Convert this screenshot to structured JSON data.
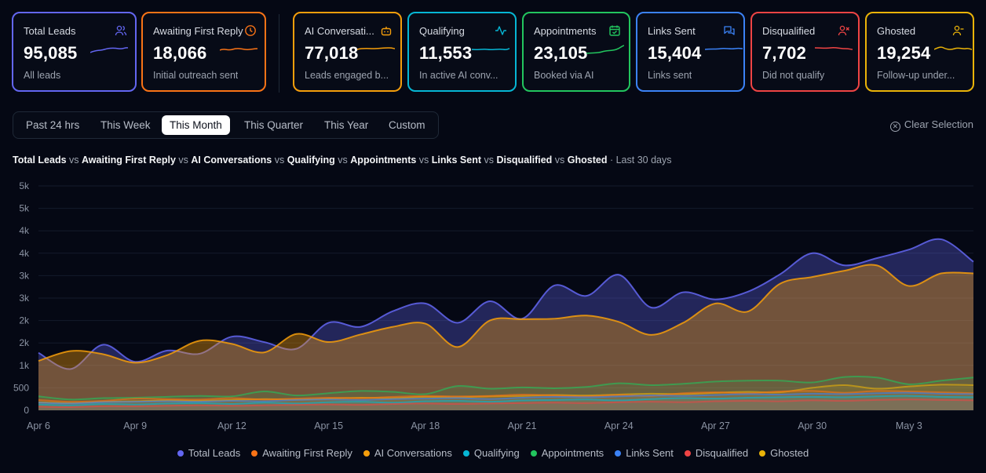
{
  "cards": [
    {
      "title": "Total Leads",
      "value": "95,085",
      "sub": "All leads",
      "color": "#6366f1",
      "icon": "users-icon"
    },
    {
      "title": "Awaiting First Reply",
      "value": "18,066",
      "sub": "Initial outreach sent",
      "color": "#f97316",
      "icon": "clock-icon"
    },
    {
      "title": "AI Conversati...",
      "value": "77,018",
      "sub": "Leads engaged b...",
      "color": "#f59e0b",
      "icon": "bot-icon"
    },
    {
      "title": "Qualifying",
      "value": "11,553",
      "sub": "In active AI conv...",
      "color": "#06b6d4",
      "icon": "activity-icon"
    },
    {
      "title": "Appointments",
      "value": "23,105",
      "sub": "Booked via AI",
      "color": "#22c55e",
      "icon": "calendar-check-icon"
    },
    {
      "title": "Links Sent",
      "value": "15,404",
      "sub": "Links sent",
      "color": "#3b82f6",
      "icon": "message-square-icon"
    },
    {
      "title": "Disqualified",
      "value": "7,702",
      "sub": "Did not qualify",
      "color": "#ef4444",
      "icon": "user-x-icon"
    },
    {
      "title": "Ghosted",
      "value": "19,254",
      "sub": "Follow-up under...",
      "color": "#eab308",
      "icon": "user-minus-icon"
    }
  ],
  "time_ranges": [
    {
      "label": "Past 24 hrs",
      "active": false
    },
    {
      "label": "This Week",
      "active": false
    },
    {
      "label": "This Month",
      "active": true
    },
    {
      "label": "This Quarter",
      "active": false
    },
    {
      "label": "This Year",
      "active": false
    },
    {
      "label": "Custom",
      "active": false
    }
  ],
  "clear_selection": "Clear Selection",
  "chart_heading": {
    "series_names": [
      "Total Leads",
      "Awaiting First Reply",
      "AI Conversations",
      "Qualifying",
      "Appointments",
      "Links Sent",
      "Disqualified",
      "Ghosted"
    ],
    "separator": "vs",
    "period": "· Last 30 days"
  },
  "chart_data": {
    "type": "area",
    "x": [
      "Apr 6",
      "Apr 7",
      "Apr 8",
      "Apr 9",
      "Apr 10",
      "Apr 11",
      "Apr 12",
      "Apr 13",
      "Apr 14",
      "Apr 15",
      "Apr 16",
      "Apr 17",
      "Apr 18",
      "Apr 19",
      "Apr 20",
      "Apr 21",
      "Apr 22",
      "Apr 23",
      "Apr 24",
      "Apr 25",
      "Apr 26",
      "Apr 27",
      "Apr 28",
      "Apr 29",
      "Apr 30",
      "May 1",
      "May 2",
      "May 3",
      "May 4",
      "May 5"
    ],
    "x_ticks": [
      "Apr 6",
      "Apr 9",
      "Apr 12",
      "Apr 15",
      "Apr 18",
      "Apr 21",
      "Apr 24",
      "Apr 27",
      "Apr 30",
      "May 3"
    ],
    "y_ticks": [
      "0",
      "500",
      "1k",
      "2k",
      "2k",
      "3k",
      "3k",
      "4k",
      "4k",
      "5k",
      "5k"
    ],
    "ylim": [
      0,
      5000
    ],
    "grid": true,
    "legend_position": "bottom",
    "series": [
      {
        "name": "Total Leads",
        "color": "#6366f1",
        "values": [
          1280,
          920,
          1460,
          1080,
          1330,
          1260,
          1640,
          1520,
          1370,
          1950,
          1860,
          2210,
          2380,
          1950,
          2430,
          2040,
          2780,
          2550,
          3020,
          2290,
          2630,
          2470,
          2640,
          3030,
          3500,
          3230,
          3390,
          3580,
          3810,
          3310
        ]
      },
      {
        "name": "Awaiting First Reply",
        "color": "#f97316",
        "values": [
          230,
          190,
          210,
          260,
          250,
          240,
          270,
          240,
          260,
          280,
          270,
          300,
          320,
          310,
          320,
          350,
          330,
          310,
          340,
          320,
          380,
          400,
          380,
          420,
          430,
          390,
          430,
          420,
          400,
          380
        ]
      },
      {
        "name": "AI Conversations",
        "color": "#f59e0b",
        "values": [
          1100,
          1320,
          1250,
          1060,
          1230,
          1550,
          1480,
          1290,
          1700,
          1520,
          1690,
          1860,
          1930,
          1410,
          2000,
          2030,
          2040,
          2110,
          1970,
          1680,
          1950,
          2380,
          2200,
          2820,
          2970,
          3110,
          3230,
          2770,
          3050,
          3050
        ]
      },
      {
        "name": "Qualifying",
        "color": "#06b6d4",
        "values": [
          130,
          110,
          140,
          130,
          150,
          160,
          140,
          170,
          150,
          180,
          190,
          170,
          200,
          210,
          190,
          220,
          230,
          240,
          220,
          250,
          270,
          260,
          280,
          290,
          300,
          290,
          310,
          320,
          300,
          290
        ]
      },
      {
        "name": "Appointments",
        "color": "#22c55e",
        "values": [
          310,
          240,
          270,
          280,
          300,
          320,
          310,
          420,
          330,
          380,
          430,
          410,
          360,
          540,
          480,
          510,
          490,
          520,
          600,
          560,
          590,
          640,
          660,
          660,
          620,
          740,
          730,
          580,
          660,
          730
        ]
      },
      {
        "name": "Links Sent",
        "color": "#3b82f6",
        "values": [
          170,
          150,
          180,
          190,
          200,
          190,
          210,
          200,
          230,
          240,
          230,
          250,
          260,
          270,
          250,
          280,
          300,
          290,
          310,
          330,
          320,
          340,
          360,
          350,
          370,
          360,
          380,
          390,
          370,
          360
        ]
      },
      {
        "name": "Disqualified",
        "color": "#ef4444",
        "values": [
          80,
          70,
          90,
          90,
          100,
          110,
          100,
          110,
          120,
          130,
          120,
          140,
          150,
          140,
          150,
          160,
          170,
          160,
          180,
          190,
          180,
          200,
          210,
          200,
          220,
          210,
          230,
          240,
          230,
          220
        ]
      },
      {
        "name": "Ghosted",
        "color": "#eab308",
        "values": [
          180,
          160,
          190,
          200,
          220,
          210,
          230,
          250,
          240,
          260,
          280,
          270,
          300,
          290,
          310,
          320,
          340,
          330,
          350,
          370,
          360,
          390,
          410,
          400,
          500,
          560,
          480,
          530,
          570,
          560
        ]
      }
    ]
  }
}
